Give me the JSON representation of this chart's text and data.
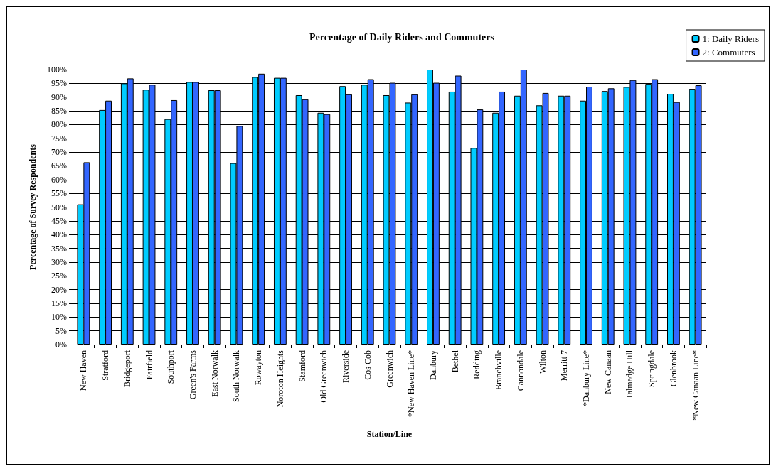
{
  "chart_data": {
    "type": "bar",
    "title": "Percentage of Daily Riders and Commuters",
    "xlabel": "Station/Line",
    "ylabel": "Percentage of Survey Respondents",
    "categories": [
      "New Haven",
      "Stratford",
      "Bridgeport",
      "Fairfield",
      "Southport",
      "Green's Farms",
      "East Norwalk",
      "South Norwalk",
      "Rowayton",
      "Noroton Heights",
      "Stamford",
      "Old Greenwich",
      "Riverside",
      "Cos Cob",
      "Greenwich",
      "*New Haven Line*",
      "Danbury",
      "Bethel",
      "Redding",
      "Branchville",
      "Cannondale",
      "Wilton",
      "Merritt 7",
      "*Danbury Line*",
      "New Canaan",
      "Talmadge Hill",
      "Springdale",
      "Glenbrook",
      "*New Canaan Line*"
    ],
    "series": [
      {
        "name": "1: Daily Riders",
        "color": "#00ccff",
        "values": [
          51,
          85.3,
          95,
          92.7,
          82,
          95.5,
          92.5,
          66,
          97.3,
          97,
          90.7,
          84.3,
          94,
          94.5,
          90.7,
          88,
          100,
          92,
          71.5,
          84.3,
          90.5,
          87,
          90.5,
          88.7,
          92.2,
          93.7,
          94.8,
          91.2,
          93
        ]
      },
      {
        "name": "2: Commuters",
        "color": "#3366ff",
        "values": [
          66.3,
          88.7,
          96.8,
          94.5,
          88.9,
          95.5,
          92.5,
          79.5,
          98.5,
          97,
          89.2,
          83.8,
          91,
          96.5,
          95.2,
          91,
          95.2,
          97.8,
          85.5,
          92,
          100,
          91.5,
          90.5,
          93.8,
          93.2,
          96.2,
          96.5,
          88.2,
          94.3
        ]
      }
    ],
    "ylim": [
      0,
      100
    ],
    "yticks": [
      {
        "value": 0,
        "label": "0%"
      },
      {
        "value": 5,
        "label": "5%"
      },
      {
        "value": 10,
        "label": "10%"
      },
      {
        "value": 15,
        "label": "15%"
      },
      {
        "value": 20,
        "label": "20%"
      },
      {
        "value": 25,
        "label": "25%"
      },
      {
        "value": 30,
        "label": "30%"
      },
      {
        "value": 35,
        "label": "35%"
      },
      {
        "value": 40,
        "label": "40%"
      },
      {
        "value": 45,
        "label": "45%"
      },
      {
        "value": 50,
        "label": "50%"
      },
      {
        "value": 55,
        "label": "55%"
      },
      {
        "value": 60,
        "label": "60%"
      },
      {
        "value": 65,
        "label": "65%"
      },
      {
        "value": 70,
        "label": "70%"
      },
      {
        "value": 75,
        "label": "75%"
      },
      {
        "value": 80,
        "label": "80%"
      },
      {
        "value": 85,
        "label": "85%"
      },
      {
        "value": 90,
        "label": "90%"
      },
      {
        "value": 95,
        "label": "95%"
      },
      {
        "value": 100,
        "label": "100%"
      }
    ],
    "grid": "y",
    "legend": "top right"
  }
}
